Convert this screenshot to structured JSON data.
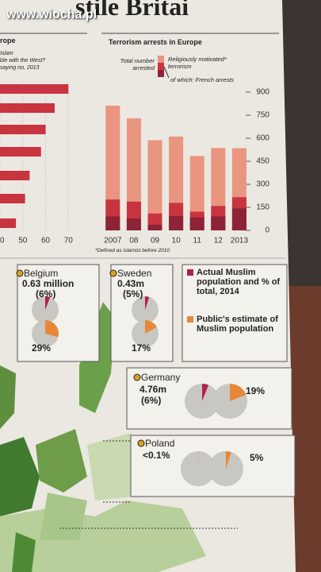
{
  "watermark": "www.wiocha.pl",
  "headline": "stile Britai",
  "chart_data": [
    {
      "type": "hbar",
      "title": "rope",
      "subtitle": [
        "Islam",
        "ble with the West?",
        "saying no, 2013"
      ],
      "categories": [
        null,
        null,
        null,
        null,
        null,
        null,
        null
      ],
      "values": [
        70,
        64,
        60,
        58,
        53,
        51,
        47
      ],
      "color": "#c8343f",
      "xlim": [
        40,
        72
      ],
      "xticks": [
        40,
        50,
        60,
        70
      ]
    },
    {
      "type": "overlap-bar",
      "title": "Terrorism arrests in Europe",
      "note": "*Defined as Islamist before 2010",
      "categories": [
        "2007",
        "08",
        "09",
        "10",
        "11",
        "12",
        "2013"
      ],
      "series": [
        {
          "name": "Total number arrested",
          "color": "#e99580",
          "values": [
            812,
            730,
            587,
            611,
            484,
            537,
            535
          ]
        },
        {
          "name": "Religiously motivated* terrorism",
          "color": "#c8343f",
          "values": [
            201,
            187,
            110,
            179,
            122,
            159,
            216
          ]
        },
        {
          "name": "of which: French arrests",
          "color": "#8e2236",
          "values": [
            91,
            78,
            37,
            94,
            85,
            91,
            143
          ]
        }
      ],
      "ylim": [
        0,
        900
      ],
      "yticks": [
        0,
        150,
        300,
        450,
        600,
        750,
        900
      ]
    }
  ],
  "legend": {
    "actual": "Actual Muslim population and % of total, 2014",
    "actual_color": "#b0234c",
    "estimate": "Public's estimate of Muslim population",
    "estimate_color": "#e8873a"
  },
  "countries": [
    {
      "name": "Belgium",
      "population": "0.63 million",
      "share": 6,
      "share_label": "(6%)",
      "estimate": 29,
      "estimate_label": "29%"
    },
    {
      "name": "Sweden",
      "population": "0.43m",
      "share": 5,
      "share_label": "(5%)",
      "estimate": 17,
      "estimate_label": "17%"
    },
    {
      "name": "Germany",
      "population": "4.76m",
      "share": 6,
      "share_label": "(6%)",
      "estimate": 19,
      "estimate_label": "19%"
    },
    {
      "name": "Poland",
      "share": 0.1,
      "share_label": "<0.1%",
      "estimate": 5,
      "estimate_label": "5%"
    }
  ]
}
